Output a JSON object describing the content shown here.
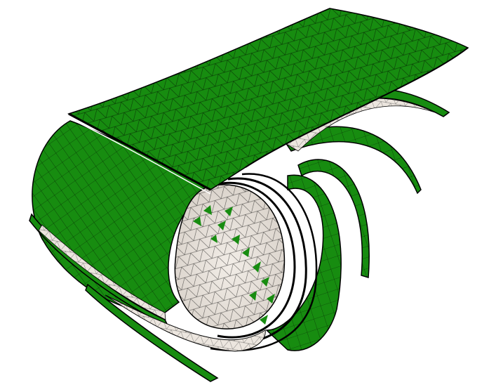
{
  "scene": {
    "subject": "curved-shell-mesh-layers",
    "colors": {
      "background": "#ffffff",
      "outer_surface": "#178c10",
      "outer_surface_dark": "#0d6a09",
      "inner_surface": "#ece6df",
      "mesh_line": "#000000"
    }
  }
}
